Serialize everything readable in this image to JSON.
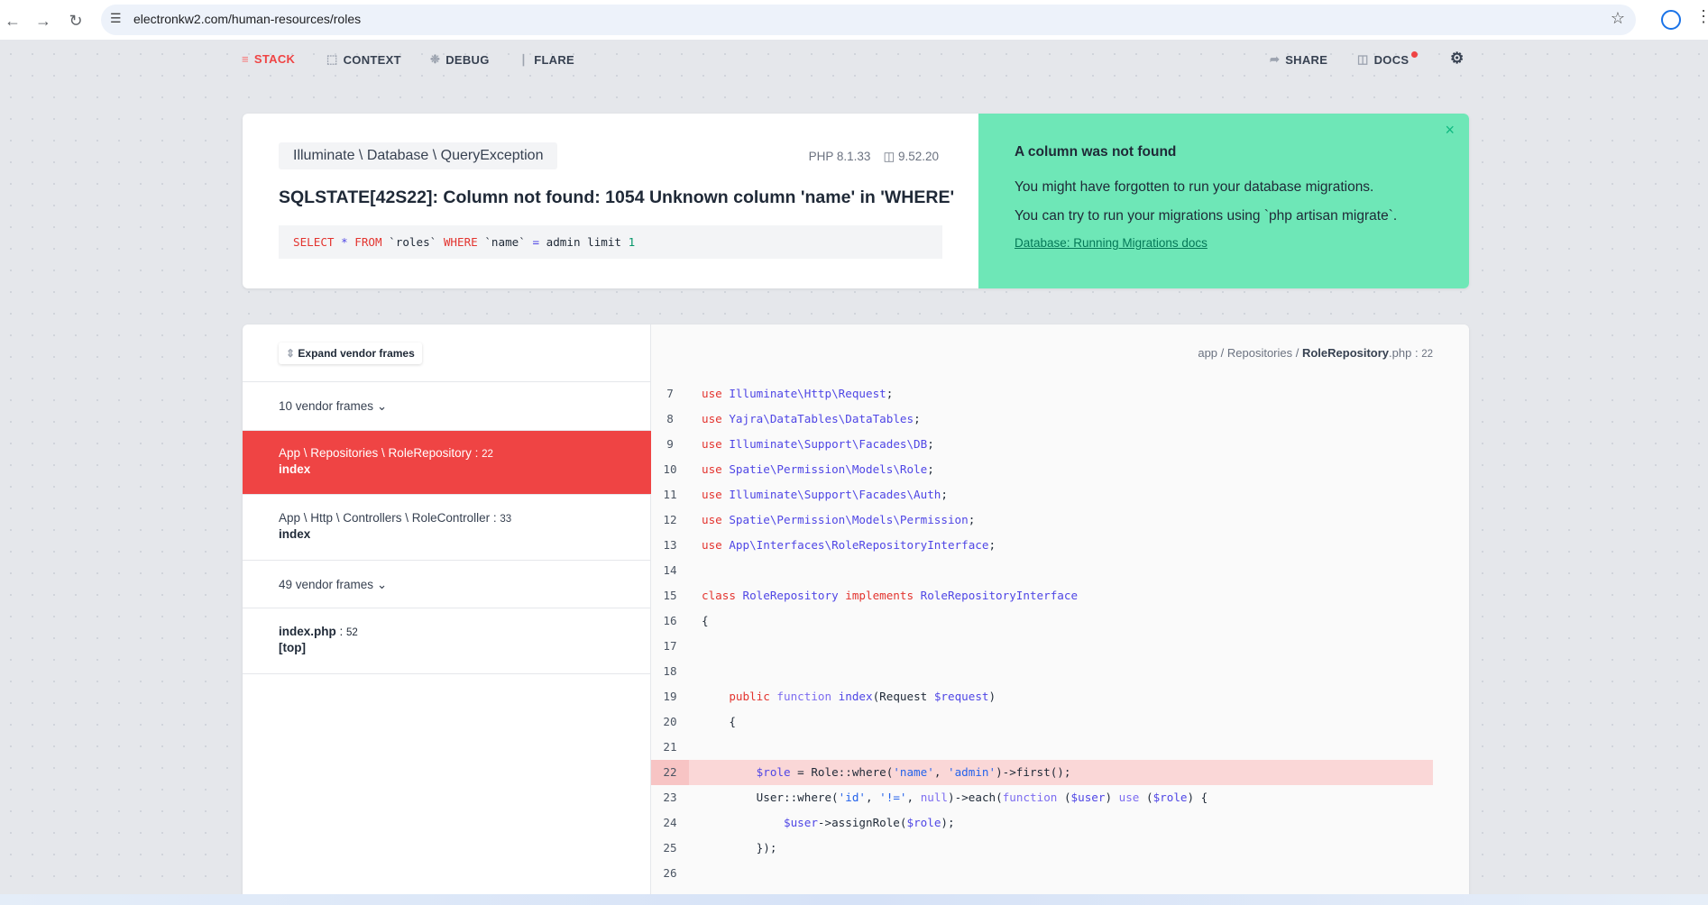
{
  "browser": {
    "url": "electronkw2.com/human-resources/roles"
  },
  "nav": {
    "left": [
      {
        "label": "STACK",
        "icon": "stack-icon"
      },
      {
        "label": "CONTEXT",
        "icon": "context-icon"
      },
      {
        "label": "DEBUG",
        "icon": "bug-icon"
      },
      {
        "label": "FLARE",
        "icon": "flare-icon"
      }
    ],
    "right": [
      {
        "label": "SHARE",
        "icon": "share-icon"
      },
      {
        "label": "DOCS",
        "icon": "laravel-icon"
      }
    ],
    "active_color": "#ef4444"
  },
  "exception": {
    "class": "Illuminate \\ Database \\ QueryException",
    "php_version": "PHP 8.1.33",
    "laravel_version": "9.52.20",
    "message": "SQLSTATE[42S22]: Column not found: 1054 Unknown column 'name' in 'WHERE'",
    "sql": [
      {
        "t": "SELECT",
        "c": "kw"
      },
      {
        "t": " * ",
        "c": "nm"
      },
      {
        "t": "FROM",
        "c": "kw"
      },
      {
        "t": " `roles` ",
        "c": "pl"
      },
      {
        "t": "WHERE",
        "c": "kw"
      },
      {
        "t": " `name` ",
        "c": "pl"
      },
      {
        "t": "=",
        "c": "nm"
      },
      {
        "t": " admin limit ",
        "c": "pl"
      },
      {
        "t": "1",
        "c": "num"
      }
    ]
  },
  "solution": {
    "title": "A column was not found",
    "line1": "You might have forgotten to run your database migrations.",
    "line2": "You can try to run your migrations using `php artisan migrate`.",
    "link": "Database: Running Migrations docs",
    "bg_color": "#6ee7b7"
  },
  "stack": {
    "expand_label": "Expand vendor frames",
    "frames": [
      {
        "type": "vendor",
        "label": "10 vendor frames"
      },
      {
        "type": "app",
        "path": "App \\ Repositories \\ RoleRepository",
        "line": "22",
        "method": "index",
        "active": true
      },
      {
        "type": "app",
        "path": "App \\ Http \\ Controllers \\ RoleController",
        "line": "33",
        "method": "index"
      },
      {
        "type": "vendor",
        "label": "49 vendor frames"
      },
      {
        "type": "app",
        "path": "index.php",
        "line": "52",
        "method": "[top]"
      }
    ]
  },
  "code": {
    "file_dir": "app / Repositories / ",
    "file_name": "RoleRepository",
    "file_ext": ".php",
    "file_line": "22",
    "highlight_line": 22,
    "lines": [
      {
        "n": "7",
        "tk": [
          {
            "t": "use ",
            "c": "kw"
          },
          {
            "t": "Illuminate\\Http\\Request",
            "c": "nm"
          },
          {
            "t": ";",
            "c": "pl"
          }
        ]
      },
      {
        "n": "8",
        "tk": [
          {
            "t": "use ",
            "c": "kw"
          },
          {
            "t": "Yajra\\DataTables\\DataTables",
            "c": "nm"
          },
          {
            "t": ";",
            "c": "pl"
          }
        ]
      },
      {
        "n": "9",
        "tk": [
          {
            "t": "use ",
            "c": "kw"
          },
          {
            "t": "Illuminate\\Support\\Facades\\DB",
            "c": "nm"
          },
          {
            "t": ";",
            "c": "pl"
          }
        ]
      },
      {
        "n": "10",
        "tk": [
          {
            "t": "use ",
            "c": "kw"
          },
          {
            "t": "Spatie\\Permission\\Models\\Role",
            "c": "nm"
          },
          {
            "t": ";",
            "c": "pl"
          }
        ]
      },
      {
        "n": "11",
        "tk": [
          {
            "t": "use ",
            "c": "kw"
          },
          {
            "t": "Illuminate\\Support\\Facades\\Auth",
            "c": "nm"
          },
          {
            "t": ";",
            "c": "pl"
          }
        ]
      },
      {
        "n": "12",
        "tk": [
          {
            "t": "use ",
            "c": "kw"
          },
          {
            "t": "Spatie\\Permission\\Models\\Permission",
            "c": "nm"
          },
          {
            "t": ";",
            "c": "pl"
          }
        ]
      },
      {
        "n": "13",
        "tk": [
          {
            "t": "use ",
            "c": "kw"
          },
          {
            "t": "App\\Interfaces\\RoleRepositoryInterface",
            "c": "nm"
          },
          {
            "t": ";",
            "c": "pl"
          }
        ]
      },
      {
        "n": "14",
        "tk": []
      },
      {
        "n": "15",
        "tk": [
          {
            "t": "class ",
            "c": "kw"
          },
          {
            "t": "RoleRepository ",
            "c": "nm"
          },
          {
            "t": "implements ",
            "c": "kw"
          },
          {
            "t": "RoleRepositoryInterface",
            "c": "nm"
          }
        ]
      },
      {
        "n": "16",
        "tk": [
          {
            "t": "{",
            "c": "pl"
          }
        ]
      },
      {
        "n": "17",
        "tk": []
      },
      {
        "n": "18",
        "tk": []
      },
      {
        "n": "19",
        "tk": [
          {
            "t": "    public ",
            "c": "kw"
          },
          {
            "t": "function ",
            "c": "fn"
          },
          {
            "t": "index",
            "c": "nm"
          },
          {
            "t": "(Request ",
            "c": "pl"
          },
          {
            "t": "$request",
            "c": "nm"
          },
          {
            "t": ")",
            "c": "pl"
          }
        ]
      },
      {
        "n": "20",
        "tk": [
          {
            "t": "    {",
            "c": "pl"
          }
        ]
      },
      {
        "n": "21",
        "tk": []
      },
      {
        "n": "22",
        "tk": [
          {
            "t": "        $role",
            "c": "nm"
          },
          {
            "t": " = Role::where(",
            "c": "pl"
          },
          {
            "t": "'name'",
            "c": "st"
          },
          {
            "t": ", ",
            "c": "pl"
          },
          {
            "t": "'admin'",
            "c": "st"
          },
          {
            "t": ")->first();",
            "c": "pl"
          }
        ]
      },
      {
        "n": "23",
        "tk": [
          {
            "t": "        User::where(",
            "c": "pl"
          },
          {
            "t": "'id'",
            "c": "st"
          },
          {
            "t": ", ",
            "c": "pl"
          },
          {
            "t": "'!='",
            "c": "st"
          },
          {
            "t": ", ",
            "c": "pl"
          },
          {
            "t": "null",
            "c": "fn"
          },
          {
            "t": ")->each(",
            "c": "pl"
          },
          {
            "t": "function ",
            "c": "fn"
          },
          {
            "t": "(",
            "c": "pl"
          },
          {
            "t": "$user",
            "c": "nm"
          },
          {
            "t": ") ",
            "c": "pl"
          },
          {
            "t": "use ",
            "c": "fn"
          },
          {
            "t": "(",
            "c": "pl"
          },
          {
            "t": "$role",
            "c": "nm"
          },
          {
            "t": ") {",
            "c": "pl"
          }
        ]
      },
      {
        "n": "24",
        "tk": [
          {
            "t": "            $user",
            "c": "nm"
          },
          {
            "t": "->assignRole(",
            "c": "pl"
          },
          {
            "t": "$role",
            "c": "nm"
          },
          {
            "t": ");",
            "c": "pl"
          }
        ]
      },
      {
        "n": "25",
        "tk": [
          {
            "t": "        });",
            "c": "pl"
          }
        ]
      },
      {
        "n": "26",
        "tk": []
      }
    ]
  }
}
